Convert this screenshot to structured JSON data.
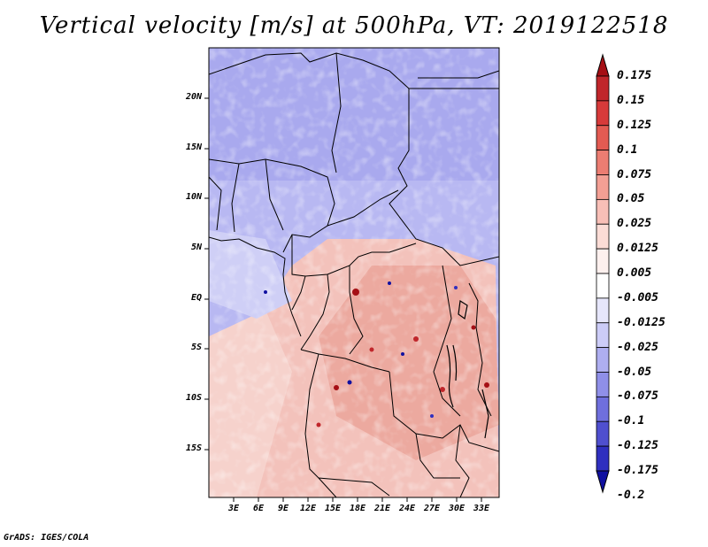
{
  "title": "Vertical velocity [m/s] at 500hPa, VT: 2019122518",
  "credit": "GrADS: IGES/COLA",
  "lat_labels": [
    "20N",
    "15N",
    "10N",
    "5N",
    "EQ",
    "5S",
    "10S",
    "15S"
  ],
  "lon_labels": [
    "3E",
    "6E",
    "9E",
    "12E",
    "15E",
    "18E",
    "21E",
    "24E",
    "27E",
    "30E",
    "33E"
  ],
  "colorbar": {
    "labels": [
      "0.175",
      "0.15",
      "0.125",
      "0.1",
      "0.075",
      "0.05",
      "0.025",
      "0.0125",
      "0.005",
      "-0.005",
      "-0.0125",
      "-0.025",
      "-0.05",
      "-0.075",
      "-0.1",
      "-0.125",
      "-0.175",
      "-0.2"
    ],
    "colors": [
      "#a50f15",
      "#c0262b",
      "#d73a3a",
      "#e35b52",
      "#ec7d72",
      "#f39f94",
      "#f8bfb7",
      "#fbdcd6",
      "#fdf0ee",
      "#ffffff",
      "#e6e6fb",
      "#ccccf7",
      "#aeaef0",
      "#8f8fe8",
      "#6f6fdd",
      "#4f4fcf",
      "#2f2fbf",
      "#1010a0"
    ]
  },
  "colors": {
    "border": "#000000",
    "background": "#ffffff"
  }
}
